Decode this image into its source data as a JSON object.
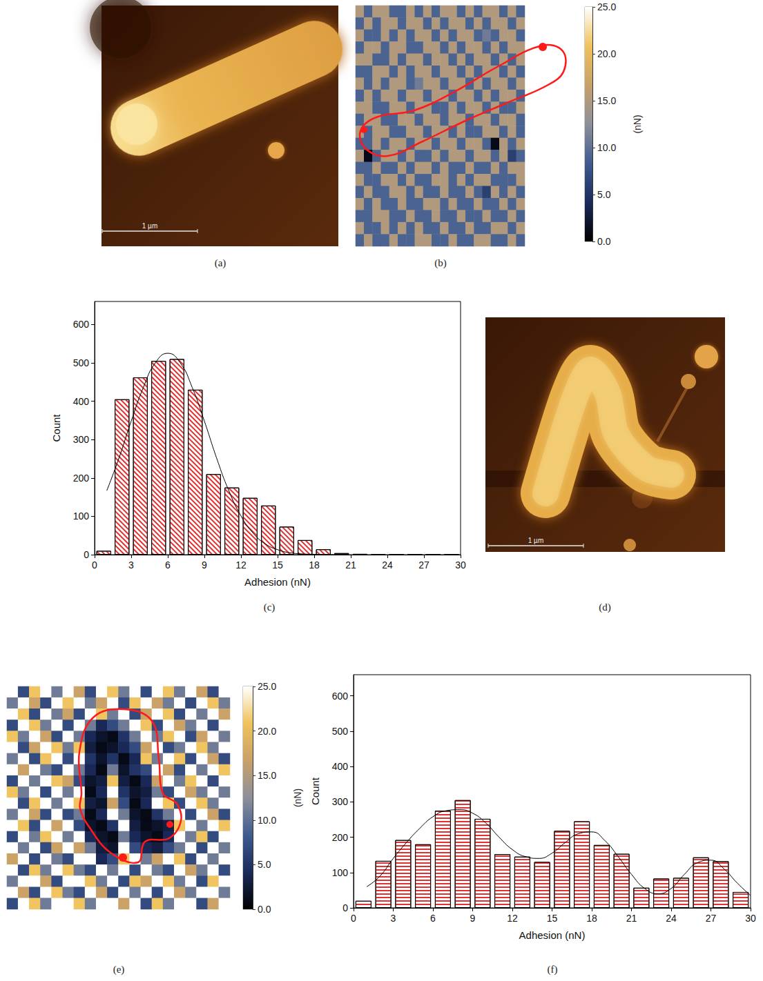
{
  "chart_data": [
    {
      "type": "image",
      "title": "(a)",
      "annotations": [
        "1 µm"
      ]
    },
    {
      "type": "heatmap",
      "title": "(b)",
      "cells": [
        [
          15,
          9,
          15,
          15,
          9,
          9,
          15,
          9,
          15,
          9,
          15,
          15,
          9,
          15,
          9,
          15,
          15,
          9,
          15,
          9
        ],
        [
          9,
          15,
          9,
          15,
          15,
          9,
          15,
          15,
          9,
          15,
          9,
          15,
          15,
          9,
          15,
          9,
          15,
          15,
          9,
          15
        ],
        [
          15,
          9,
          9,
          15,
          9,
          15,
          9,
          15,
          15,
          9,
          15,
          9,
          15,
          15,
          9,
          11,
          9,
          15,
          15,
          9
        ],
        [
          9,
          15,
          15,
          9,
          15,
          15,
          9,
          9,
          15,
          15,
          9,
          15,
          9,
          15,
          15,
          9,
          15,
          9,
          15,
          15
        ],
        [
          15,
          15,
          9,
          9,
          15,
          9,
          15,
          15,
          9,
          15,
          15,
          9,
          15,
          9,
          15,
          15,
          9,
          15,
          9,
          15
        ],
        [
          9,
          9,
          15,
          15,
          9,
          15,
          9,
          15,
          15,
          9,
          15,
          15,
          9,
          15,
          9,
          15,
          15,
          9,
          15,
          9
        ],
        [
          15,
          9,
          15,
          9,
          15,
          15,
          9,
          11,
          15,
          15,
          9,
          15,
          15,
          9,
          15,
          9,
          15,
          15,
          9,
          15
        ],
        [
          9,
          15,
          9,
          15,
          15,
          9,
          15,
          15,
          9,
          15,
          15,
          9,
          15,
          15,
          9,
          15,
          9,
          15,
          15,
          9
        ],
        [
          15,
          15,
          9,
          9,
          15,
          15,
          9,
          15,
          15,
          9,
          9,
          15,
          9,
          15,
          15,
          9,
          15,
          9,
          9,
          15
        ],
        [
          9,
          15,
          15,
          9,
          9,
          15,
          15,
          9,
          15,
          15,
          9,
          15,
          15,
          9,
          15,
          15,
          9,
          15,
          15,
          9
        ],
        [
          15,
          9,
          15,
          15,
          9,
          9,
          15,
          15,
          9,
          15,
          15,
          9,
          15,
          9,
          9,
          15,
          15,
          9,
          15,
          9
        ],
        [
          9,
          9,
          15,
          9,
          15,
          15,
          9,
          15,
          15,
          9,
          15,
          15,
          9,
          15,
          15,
          9,
          1,
          15,
          9,
          15
        ],
        [
          15,
          1,
          9,
          15,
          15,
          9,
          15,
          9,
          9,
          15,
          9,
          15,
          15,
          9,
          15,
          15,
          9,
          15,
          6,
          9
        ],
        [
          9,
          9,
          15,
          9,
          9,
          15,
          9,
          15,
          15,
          9,
          15,
          9,
          9,
          15,
          9,
          9,
          15,
          9,
          15,
          15
        ],
        [
          15,
          9,
          9,
          15,
          15,
          9,
          15,
          9,
          9,
          15,
          15,
          9,
          15,
          9,
          15,
          15,
          9,
          9,
          9,
          15
        ],
        [
          9,
          15,
          9,
          9,
          15,
          15,
          9,
          15,
          9,
          9,
          15,
          9,
          9,
          15,
          9,
          6,
          15,
          9,
          15,
          9
        ],
        [
          15,
          9,
          15,
          9,
          9,
          15,
          9,
          9,
          15,
          15,
          9,
          15,
          9,
          9,
          15,
          9,
          9,
          15,
          9,
          15
        ],
        [
          9,
          9,
          15,
          15,
          9,
          9,
          15,
          9,
          9,
          15,
          9,
          9,
          15,
          9,
          9,
          15,
          9,
          9,
          15,
          9
        ],
        [
          15,
          9,
          9,
          15,
          9,
          15,
          9,
          15,
          9,
          9,
          15,
          9,
          9,
          15,
          9,
          9,
          15,
          15,
          9,
          15
        ],
        [
          9,
          15,
          9,
          9,
          15,
          9,
          9,
          15,
          15,
          9,
          9,
          15,
          9,
          9,
          15,
          15,
          9,
          9,
          15,
          9
        ]
      ],
      "colorbar": {
        "range": [
          0,
          25
        ],
        "ticks": [
          {
            "value": 0,
            "label": "0.0"
          },
          {
            "value": 5,
            "label": "5.0"
          },
          {
            "value": 10,
            "label": "10.0"
          },
          {
            "value": 15,
            "label": "15.0"
          },
          {
            "value": 20,
            "label": "20.0"
          },
          {
            "value": 25,
            "label": "25.0"
          }
        ],
        "label": "(nN)"
      }
    },
    {
      "type": "histogram",
      "title": "(c)",
      "xlabel": "Adhesion (nN)",
      "ylabel": "Count",
      "color": "#e03030",
      "bins": [
        0,
        1.5,
        3,
        4.5,
        6,
        7.5,
        9,
        10.5,
        12,
        13.5,
        15,
        16.5,
        18,
        19.5,
        21,
        22.5,
        24,
        25.5,
        27,
        28.5,
        30
      ],
      "values": [
        10,
        405,
        462,
        505,
        510,
        430,
        210,
        175,
        148,
        128,
        73,
        38,
        14,
        4,
        2,
        1,
        0,
        0,
        0,
        0
      ],
      "fit": {
        "x": [
          1,
          2,
          3,
          4,
          5,
          6,
          7,
          8,
          9,
          10,
          11,
          12,
          13,
          14,
          15,
          16,
          17,
          18,
          19,
          20
        ],
        "values": [
          167,
          252,
          348,
          436,
          501,
          525,
          501,
          436,
          348,
          252,
          167,
          101,
          56,
          28,
          13,
          5,
          2,
          1,
          0,
          0
        ]
      },
      "xlim": [
        0,
        30
      ],
      "xticks": [
        0,
        3,
        6,
        9,
        12,
        15,
        18,
        21,
        24,
        27,
        30
      ],
      "ylim": [
        0,
        660
      ],
      "yticks": [
        0,
        100,
        200,
        300,
        400,
        500,
        600
      ]
    },
    {
      "type": "image",
      "title": "(d)",
      "annotations": [
        "1 µm"
      ]
    },
    {
      "type": "heatmap",
      "title": "(e)",
      "cells": [
        [
          25,
          7,
          21,
          25,
          11,
          25,
          17,
          7,
          25,
          21,
          11,
          25,
          7,
          25,
          21,
          11,
          25,
          17,
          7,
          25
        ],
        [
          11,
          25,
          17,
          7,
          25,
          21,
          25,
          11,
          17,
          25,
          7,
          21,
          25,
          17,
          11,
          25,
          7,
          25,
          21,
          11
        ],
        [
          25,
          21,
          7,
          25,
          11,
          17,
          7,
          25,
          21,
          11,
          25,
          7,
          17,
          25,
          21,
          7,
          25,
          11,
          25,
          17
        ],
        [
          7,
          25,
          21,
          11,
          25,
          7,
          25,
          11,
          4,
          7,
          11,
          25,
          21,
          7,
          25,
          17,
          11,
          25,
          7,
          25
        ],
        [
          21,
          11,
          25,
          17,
          7,
          25,
          11,
          4,
          2,
          1,
          5,
          11,
          25,
          11,
          21,
          25,
          7,
          17,
          25,
          11
        ],
        [
          25,
          7,
          17,
          25,
          21,
          11,
          21,
          3,
          1,
          2,
          4,
          7,
          17,
          25,
          7,
          11,
          25,
          21,
          11,
          25
        ],
        [
          11,
          25,
          7,
          21,
          25,
          7,
          25,
          5,
          2,
          5,
          1,
          4,
          21,
          11,
          25,
          21,
          7,
          25,
          17,
          7
        ],
        [
          25,
          17,
          25,
          11,
          7,
          25,
          11,
          4,
          1,
          11,
          2,
          5,
          7,
          25,
          17,
          7,
          25,
          11,
          25,
          21
        ],
        [
          7,
          25,
          11,
          25,
          21,
          17,
          7,
          2,
          3,
          21,
          3,
          1,
          4,
          17,
          25,
          11,
          21,
          25,
          7,
          25
        ],
        [
          21,
          11,
          25,
          7,
          25,
          11,
          25,
          1,
          4,
          25,
          5,
          2,
          3,
          11,
          7,
          25,
          17,
          11,
          25,
          11
        ],
        [
          25,
          7,
          21,
          25,
          11,
          25,
          21,
          3,
          2,
          17,
          7,
          1,
          4,
          25,
          21,
          7,
          25,
          21,
          11,
          25
        ],
        [
          11,
          25,
          17,
          7,
          25,
          7,
          11,
          1,
          4,
          25,
          11,
          2,
          1,
          5,
          11,
          25,
          7,
          25,
          17,
          7
        ],
        [
          25,
          21,
          7,
          25,
          17,
          25,
          7,
          2,
          1,
          5,
          25,
          3,
          1,
          2,
          3,
          21,
          25,
          11,
          25,
          21
        ],
        [
          7,
          25,
          11,
          21,
          25,
          11,
          25,
          4,
          2,
          1,
          11,
          4,
          2,
          1,
          4,
          25,
          11,
          21,
          7,
          25
        ],
        [
          25,
          11,
          25,
          7,
          17,
          25,
          17,
          11,
          3,
          2,
          25,
          7,
          4,
          3,
          7,
          11,
          25,
          7,
          25,
          11
        ],
        [
          17,
          25,
          7,
          25,
          11,
          7,
          25,
          25,
          4,
          7,
          21,
          25,
          11,
          17,
          25,
          21,
          7,
          25,
          11,
          25
        ],
        [
          25,
          7,
          21,
          11,
          25,
          21,
          11,
          7,
          25,
          11,
          25,
          7,
          25,
          11,
          7,
          25,
          17,
          11,
          25,
          7
        ],
        [
          11,
          25,
          25,
          17,
          7,
          25,
          25,
          21,
          11,
          25,
          7,
          21,
          17,
          25,
          21,
          11,
          25,
          7,
          21,
          25
        ],
        [
          25,
          17,
          7,
          25,
          21,
          11,
          7,
          25,
          17,
          7,
          25,
          11,
          25,
          7,
          25,
          17,
          11,
          25,
          25,
          11
        ],
        [
          7,
          25,
          21,
          11,
          25,
          25,
          21,
          11,
          25,
          25,
          17,
          25,
          7,
          21,
          11,
          25,
          25,
          7,
          17,
          25
        ]
      ],
      "colorbar": {
        "range": [
          0,
          25
        ],
        "ticks": [
          {
            "value": 0,
            "label": "0.0"
          },
          {
            "value": 5,
            "label": "5.0"
          },
          {
            "value": 10,
            "label": "10.0"
          },
          {
            "value": 15,
            "label": "15.0"
          },
          {
            "value": 20,
            "label": "20.0"
          },
          {
            "value": 25,
            "label": "25.0"
          }
        ],
        "label": "(nN)"
      }
    },
    {
      "type": "histogram",
      "title": "(f)",
      "xlabel": "Adhesion (nN)",
      "ylabel": "Count",
      "color": "#e03030",
      "bins": [
        0,
        1.5,
        3,
        4.5,
        6,
        7.5,
        9,
        10.5,
        12,
        13.5,
        15,
        16.5,
        18,
        19.5,
        21,
        22.5,
        24,
        25.5,
        27,
        28.5,
        30
      ],
      "values": [
        20,
        133,
        192,
        180,
        275,
        305,
        252,
        152,
        145,
        130,
        218,
        245,
        178,
        153,
        57,
        83,
        85,
        143,
        132,
        45
      ],
      "fit": {
        "x": [
          1,
          2,
          3,
          4,
          5,
          6,
          7,
          8,
          9,
          10,
          11,
          12,
          13,
          14,
          15,
          16,
          17,
          18,
          19,
          20,
          21,
          22,
          23,
          24,
          25,
          26,
          27,
          28,
          29,
          30
        ],
        "values": [
          60,
          90,
          140,
          185,
          225,
          258,
          275,
          278,
          268,
          240,
          200,
          165,
          145,
          140,
          155,
          185,
          210,
          215,
          190,
          145,
          95,
          55,
          40,
          55,
          95,
          128,
          135,
          110,
          70,
          35
        ]
      },
      "xlim": [
        0,
        30
      ],
      "xticks": [
        0,
        3,
        6,
        9,
        12,
        15,
        18,
        21,
        24,
        27,
        30
      ],
      "ylim": [
        0,
        660
      ],
      "yticks": [
        0,
        100,
        200,
        300,
        400,
        500,
        600
      ]
    }
  ]
}
